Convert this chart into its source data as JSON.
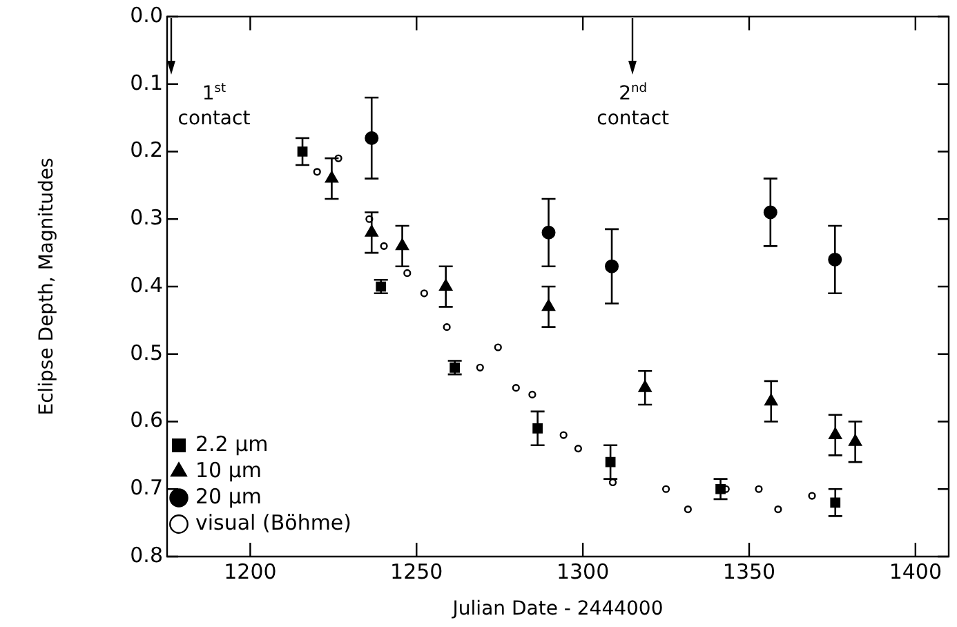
{
  "chart_data": {
    "type": "scatter",
    "xlabel": "Julian Date - 2444000",
    "ylabel": "Eclipse Depth, Magnitudes",
    "xlim": [
      1175,
      1410
    ],
    "xticks": [
      1200,
      1250,
      1300,
      1350,
      1400
    ],
    "ylim": [
      0.8,
      0.0
    ],
    "yticks": [
      {
        "value": 0,
        "label": "0.0"
      },
      0.1,
      0.2,
      0.3,
      0.4,
      0.5,
      0.6,
      0.7,
      0.8
    ],
    "grid": false,
    "legend": "bottom left",
    "series": [
      {
        "name": "2.2 μm",
        "color": "#000000",
        "marker": "square",
        "x": [
          1215.7,
          1239.3,
          1261.5,
          1286.4,
          1308.3,
          1341.4,
          1375.9
        ],
        "values": [
          0.2,
          0.4,
          0.52,
          0.61,
          0.66,
          0.7,
          0.72
        ],
        "errors": [
          0.02,
          0.01,
          0.01,
          0.025,
          0.025,
          0.015,
          0.02
        ]
      },
      {
        "name": "10 μm",
        "color": "#000000",
        "marker": "triangle",
        "x": [
          1224.5,
          1236.5,
          1245.7,
          1258.8,
          1289.7,
          1318.7,
          1356.6,
          1375.9,
          1381.9
        ],
        "values": [
          0.24,
          0.32,
          0.34,
          0.4,
          0.43,
          0.55,
          0.57,
          0.62,
          0.63
        ],
        "errors": [
          0.03,
          0.03,
          0.03,
          0.03,
          0.03,
          0.025,
          0.03,
          0.03,
          0.03
        ]
      },
      {
        "name": "20 μm",
        "color": "#000000",
        "marker": "circle",
        "x": [
          1236.5,
          1289.7,
          1308.7,
          1356.4,
          1375.8
        ],
        "values": [
          0.18,
          0.32,
          0.37,
          0.29,
          0.36
        ],
        "errors": [
          0.06,
          0.05,
          0.055,
          0.05,
          0.05
        ]
      },
      {
        "name": "visual (Böhme)",
        "color": "#000000",
        "marker": "circle",
        "x": [
          1220.1,
          1226.5,
          1235.8,
          1240.2,
          1247.2,
          1252.3,
          1259.1,
          1269.1,
          1274.5,
          1279.9,
          1284.8,
          1294.2,
          1298.6,
          1309,
          1325,
          1331.6,
          1343,
          1352.9,
          1358.7,
          1368.9
        ],
        "values": [
          0.23,
          0.21,
          0.3,
          0.34,
          0.38,
          0.41,
          0.46,
          0.52,
          0.49,
          0.55,
          0.56,
          0.62,
          0.64,
          0.69,
          0.7,
          0.73,
          0.7,
          0.7,
          0.73,
          0.71
        ]
      }
    ],
    "annotations": [
      "1$^{st}$ contact",
      "2$^{nd}$ contact"
    ]
  }
}
